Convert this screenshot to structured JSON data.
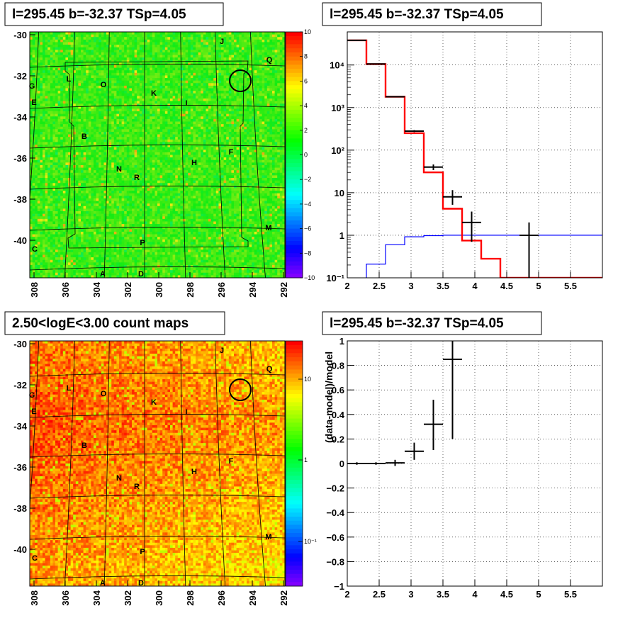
{
  "panels": {
    "map1": {
      "title": "l=295.45 b=-32.37 TSp=4.05",
      "colorbar_ticks": [
        "10",
        "8",
        "6",
        "4",
        "2",
        "0",
        "−2",
        "−4",
        "−6",
        "−8",
        "−10"
      ]
    },
    "spectrum": {
      "title": "l=295.45 b=-32.37 TSp=4.05"
    },
    "map2": {
      "title": "2.50<logE<3.00 count maps",
      "colorbar_ticks": [
        "10",
        "1",
        "10⁻¹"
      ]
    },
    "residual": {
      "title": "l=295.45 b=-32.37 TSp=4.05"
    }
  },
  "map_axes": {
    "x_ticks": [
      "308",
      "306",
      "304",
      "302",
      "300",
      "298",
      "296",
      "294",
      "292"
    ],
    "y_ticks": [
      "-30",
      "-32",
      "-34",
      "-36",
      "-38",
      "-40"
    ]
  },
  "sources": [
    {
      "label": "J"
    },
    {
      "label": "Q"
    },
    {
      "label": "L"
    },
    {
      "label": "O"
    },
    {
      "label": "G"
    },
    {
      "label": "K"
    },
    {
      "label": "E"
    },
    {
      "label": "I"
    },
    {
      "label": "B"
    },
    {
      "label": "F"
    },
    {
      "label": "H"
    },
    {
      "label": "N"
    },
    {
      "label": "R"
    },
    {
      "label": "M"
    },
    {
      "label": "C"
    },
    {
      "label": "P"
    },
    {
      "label": "A"
    },
    {
      "label": "D"
    }
  ],
  "chart_data": [
    {
      "type": "heatmap",
      "title": "l=295.45 b=-32.37 TSp=4.05",
      "x_ticks": [
        308,
        306,
        304,
        302,
        300,
        298,
        296,
        294,
        292
      ],
      "y_ticks": [
        -30,
        -32,
        -34,
        -36,
        -38,
        -40
      ],
      "colorbar_range": [
        -10,
        10
      ],
      "grid": true
    },
    {
      "type": "line",
      "title": "l=295.45 b=-32.37 TSp=4.05",
      "xlim": [
        2,
        6
      ],
      "ylim": [
        0.1,
        60000
      ],
      "y_log": true,
      "x_ticks": [
        2,
        2.5,
        3,
        3.5,
        4,
        4.5,
        5,
        5.5
      ],
      "y_ticks": [
        "10⁻¹",
        "1",
        "10",
        "10²",
        "10³",
        "10⁴"
      ],
      "grid": true,
      "series": [
        {
          "color": "#ff0000",
          "step_edges": [
            2.0,
            2.3,
            2.6,
            2.9,
            3.2,
            3.5,
            3.8,
            4.1,
            4.4,
            6.0
          ],
          "values": [
            38000,
            10500,
            1800,
            250,
            30,
            4.2,
            0.75,
            0.28,
            0.1
          ]
        },
        {
          "color": "#0000ff",
          "step_edges": [
            2.0,
            2.3,
            2.6,
            2.9,
            3.2,
            3.5,
            3.8,
            6.0
          ],
          "values": [
            0.08,
            0.21,
            0.6,
            0.92,
            0.98,
            1.0,
            1.0
          ]
        },
        {
          "color": "#000000",
          "points": [
            {
              "x": 2.15,
              "y": 38000,
              "xerr": 0.15,
              "ylo": 37500,
              "yhi": 38500
            },
            {
              "x": 2.45,
              "y": 10600,
              "xerr": 0.15,
              "ylo": 10400,
              "yhi": 10800
            },
            {
              "x": 2.75,
              "y": 1800,
              "xerr": 0.15,
              "ylo": 1750,
              "yhi": 1850
            },
            {
              "x": 3.05,
              "y": 280,
              "xerr": 0.15,
              "ylo": 265,
              "yhi": 295
            },
            {
              "x": 3.35,
              "y": 40,
              "xerr": 0.15,
              "ylo": 34,
              "yhi": 46
            },
            {
              "x": 3.65,
              "y": 8,
              "xerr": 0.15,
              "ylo": 5.2,
              "yhi": 11.5
            },
            {
              "x": 3.95,
              "y": 2,
              "xerr": 0.15,
              "ylo": 0.7,
              "yhi": 3.6
            },
            {
              "x": 4.85,
              "y": 1,
              "xerr": 0.15,
              "ylo": 0.1,
              "yhi": 2.0
            }
          ]
        }
      ]
    },
    {
      "type": "heatmap",
      "title": "2.50<logE<3.00 count maps",
      "x_ticks": [
        308,
        306,
        304,
        302,
        300,
        298,
        296,
        294,
        292
      ],
      "y_ticks": [
        -30,
        -32,
        -34,
        -36,
        -38,
        -40
      ],
      "colorbar_log": true,
      "grid": true
    },
    {
      "type": "scatter",
      "title": "l=295.45 b=-32.37 TSp=4.05",
      "ylabel": "(data-model)/model",
      "xlim": [
        2,
        6
      ],
      "ylim": [
        -1,
        1
      ],
      "x_ticks": [
        2,
        2.5,
        3,
        3.5,
        4,
        4.5,
        5,
        5.5
      ],
      "y_ticks": [
        -1,
        -0.8,
        -0.6,
        -0.4,
        -0.2,
        0,
        0.2,
        0.4,
        0.6,
        0.8,
        1
      ],
      "grid": true,
      "points": [
        {
          "x": 2.15,
          "y": 0.0,
          "xerr": 0.15,
          "ylo": -0.01,
          "yhi": 0.01
        },
        {
          "x": 2.45,
          "y": 0.0,
          "xerr": 0.15,
          "ylo": -0.01,
          "yhi": 0.01
        },
        {
          "x": 2.75,
          "y": 0.005,
          "xerr": 0.15,
          "ylo": -0.02,
          "yhi": 0.03
        },
        {
          "x": 3.05,
          "y": 0.1,
          "xerr": 0.15,
          "ylo": 0.03,
          "yhi": 0.17
        },
        {
          "x": 3.35,
          "y": 0.32,
          "xerr": 0.15,
          "ylo": 0.11,
          "yhi": 0.52
        },
        {
          "x": 3.65,
          "y": 0.85,
          "xerr": 0.15,
          "ylo": 0.2,
          "yhi": 1.0
        }
      ]
    }
  ]
}
